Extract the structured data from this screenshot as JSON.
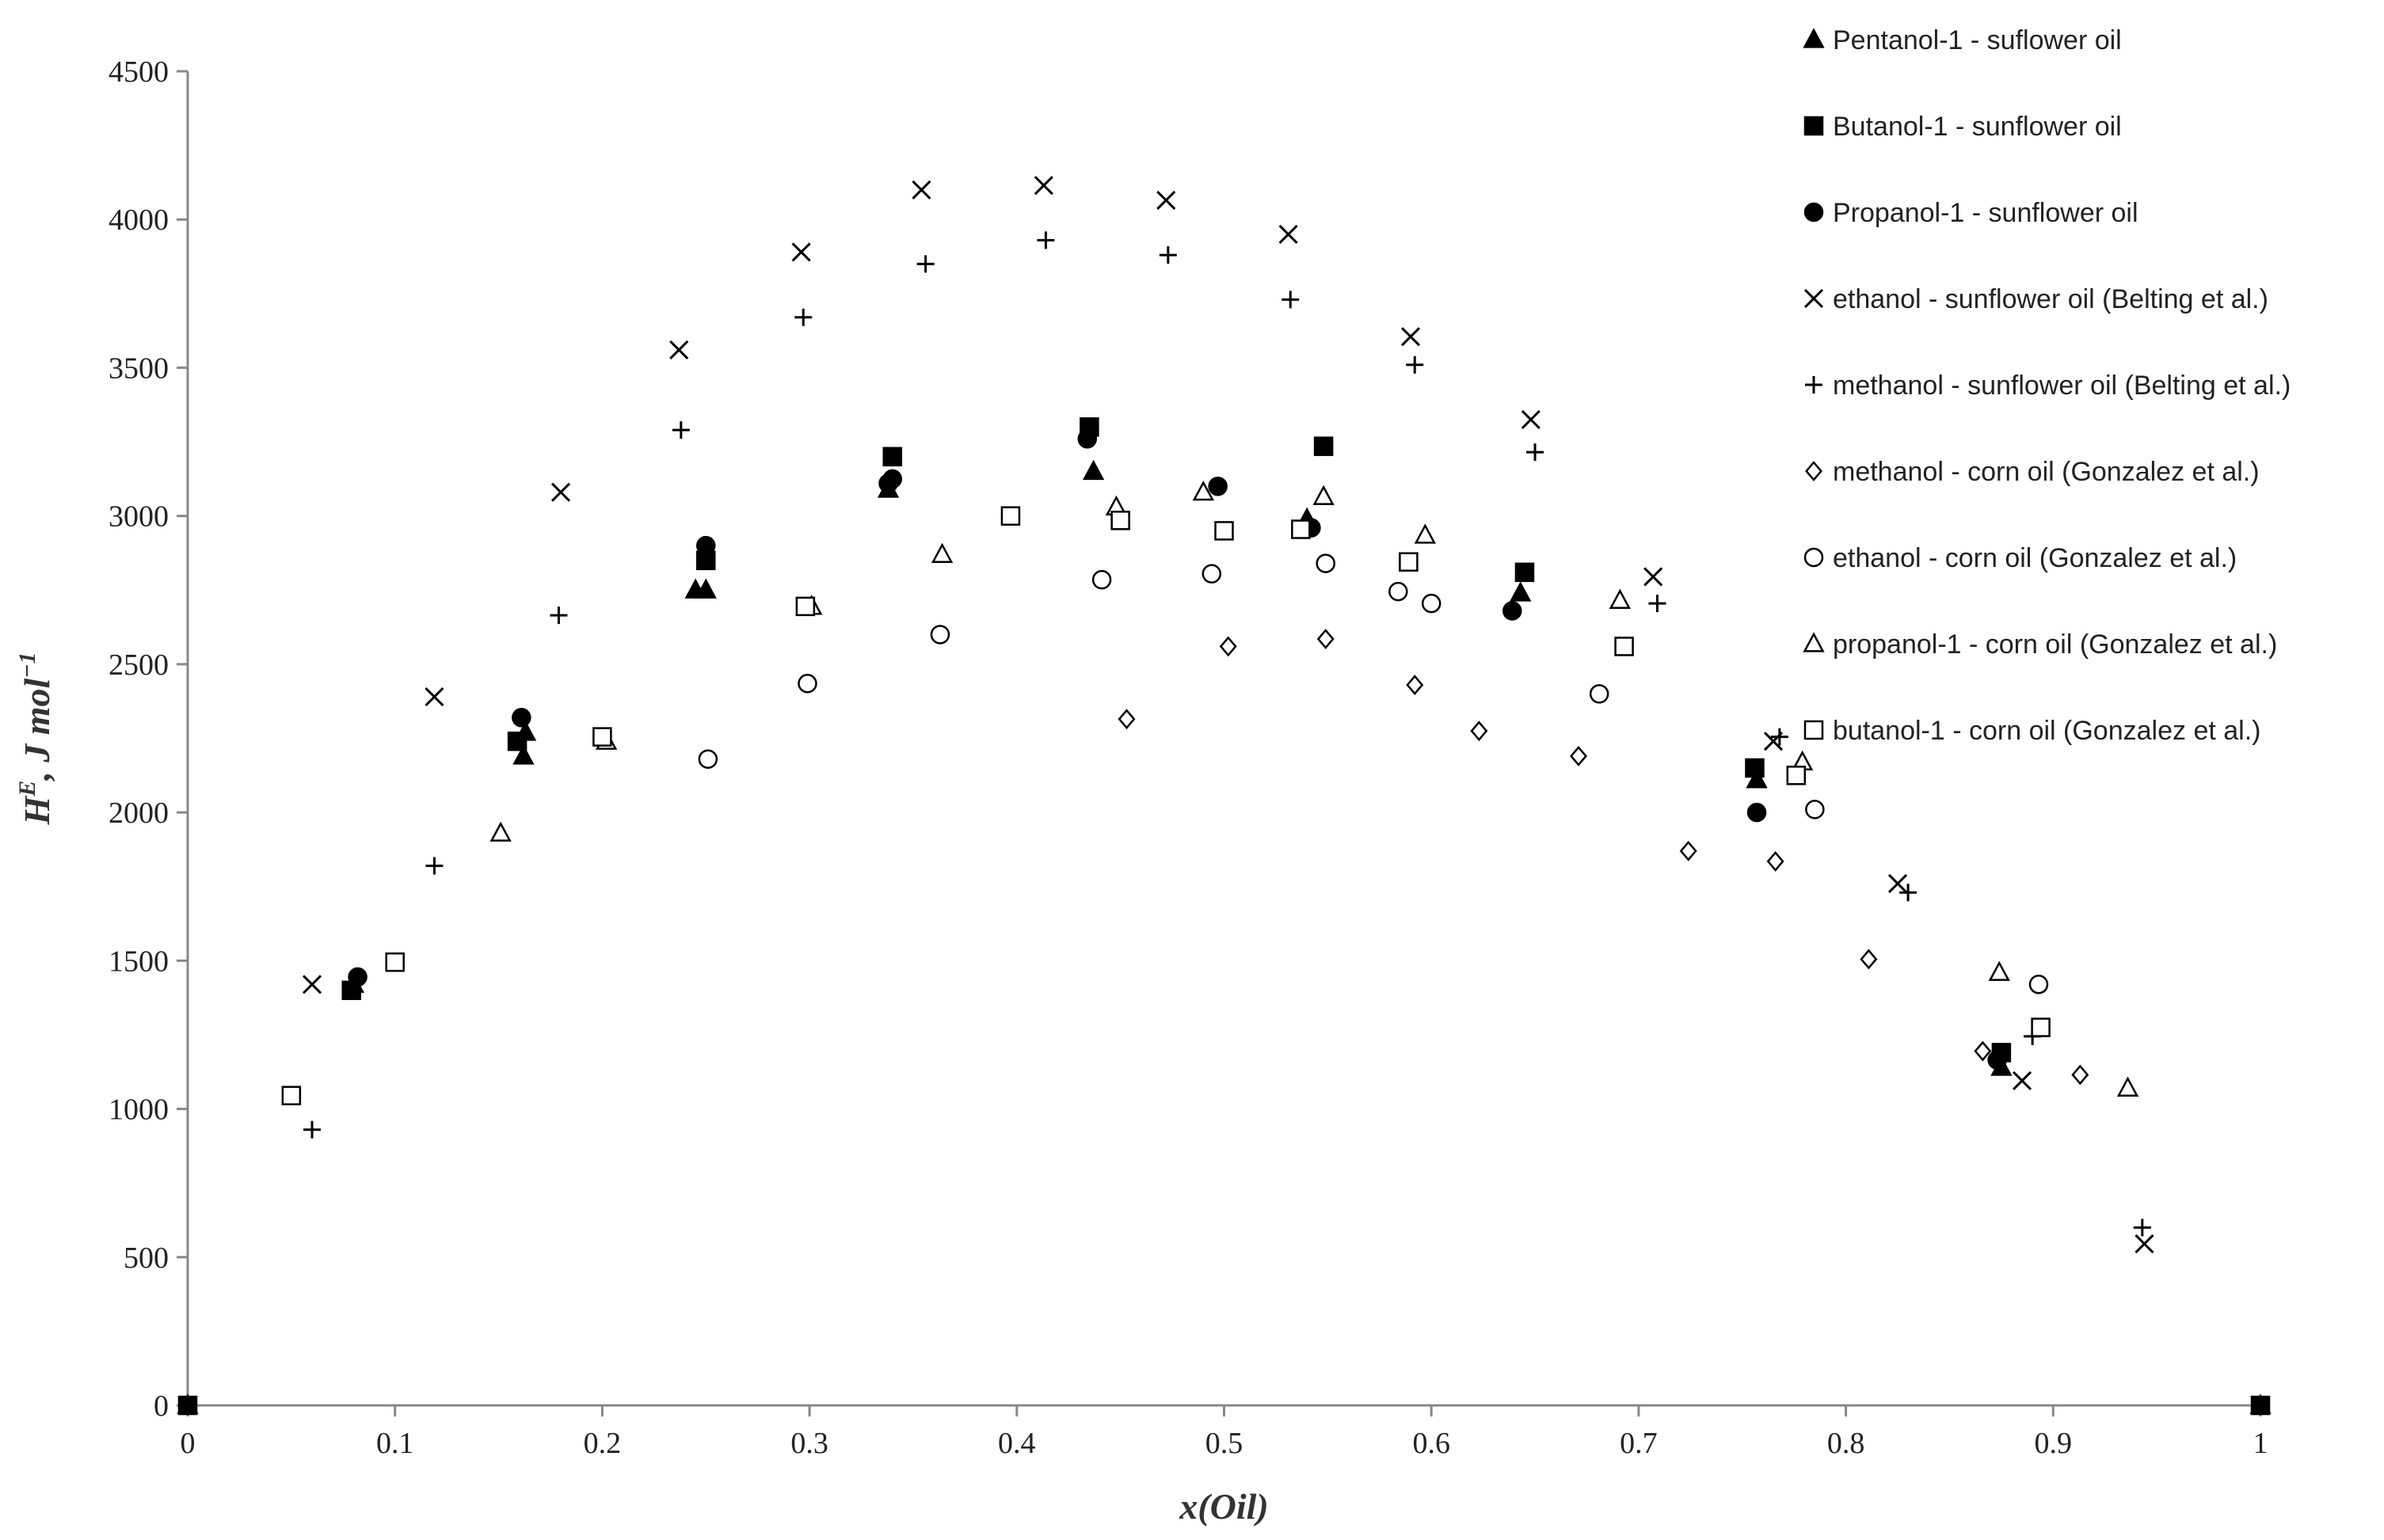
{
  "chart_data": {
    "type": "scatter",
    "title": "",
    "xlabel": "x(Oil)",
    "ylabel_main": "H",
    "ylabel_sup": "E",
    "ylabel_rest": ", J mol",
    "ylabel_exp": "−1",
    "xlim": [
      0,
      1
    ],
    "ylim": [
      0,
      4500
    ],
    "xticks": [
      0,
      0.1,
      0.2,
      0.3,
      0.4,
      0.5,
      0.6,
      0.7,
      0.8,
      0.9,
      1
    ],
    "xtick_labels": [
      "0",
      "0.1",
      "0.2",
      "0.3",
      "0.4",
      "0.5",
      "0.6",
      "0.7",
      "0.8",
      "0.9",
      "1"
    ],
    "yticks": [
      0,
      500,
      1000,
      1500,
      2000,
      2500,
      3000,
      3500,
      4000,
      4500
    ],
    "ytick_labels": [
      "0",
      "500",
      "1000",
      "1500",
      "2000",
      "2500",
      "3000",
      "3500",
      "4000",
      "4500"
    ],
    "grid": false,
    "legend_position": "top-right",
    "series": [
      {
        "name": "Pentanol-1 - suflower oil",
        "marker": "triangle-filled",
        "points": [
          [
            0,
            0
          ],
          [
            0.08,
            1420
          ],
          [
            0.162,
            2190
          ],
          [
            0.163,
            2270
          ],
          [
            0.245,
            2750
          ],
          [
            0.25,
            2750
          ],
          [
            0.338,
            3090
          ],
          [
            0.437,
            3150
          ],
          [
            0.54,
            2990
          ],
          [
            0.643,
            2740
          ],
          [
            0.757,
            2110
          ],
          [
            0.875,
            1140
          ],
          [
            1,
            0
          ]
        ]
      },
      {
        "name": "Butanol-1 - sunflower oil",
        "marker": "square-filled",
        "points": [
          [
            0,
            0
          ],
          [
            0.079,
            1400
          ],
          [
            0.159,
            2240
          ],
          [
            0.25,
            2850
          ],
          [
            0.34,
            3200
          ],
          [
            0.435,
            3300
          ],
          [
            0.548,
            3235
          ],
          [
            0.645,
            2810
          ],
          [
            0.756,
            2150
          ],
          [
            0.875,
            1190
          ],
          [
            1,
            0
          ]
        ]
      },
      {
        "name": "Propanol-1 - sunflower oil",
        "marker": "circle-filled",
        "points": [
          [
            0.082,
            1445
          ],
          [
            0.161,
            2320
          ],
          [
            0.25,
            2900
          ],
          [
            0.338,
            3110
          ],
          [
            0.34,
            3125
          ],
          [
            0.434,
            3260
          ],
          [
            0.497,
            3100
          ],
          [
            0.542,
            2960
          ],
          [
            0.639,
            2680
          ],
          [
            0.757,
            2000
          ],
          [
            0.873,
            1165
          ]
        ]
      },
      {
        "name": "ethanol - sunflower oil (Belting et al.)",
        "marker": "x",
        "points": [
          [
            0.06,
            1420
          ],
          [
            0.119,
            2390
          ],
          [
            0.18,
            3080
          ],
          [
            0.237,
            3560
          ],
          [
            0.296,
            3890
          ],
          [
            0.354,
            4100
          ],
          [
            0.413,
            4115
          ],
          [
            0.472,
            4065
          ],
          [
            0.531,
            3950
          ],
          [
            0.59,
            3605
          ],
          [
            0.648,
            3325
          ],
          [
            0.707,
            2795
          ],
          [
            0.765,
            2240
          ],
          [
            0.825,
            1760
          ],
          [
            0.885,
            1095
          ],
          [
            0.944,
            545
          ]
        ]
      },
      {
        "name": "methanol - sunflower oil (Belting et al.)",
        "marker": "plus",
        "points": [
          [
            0.06,
            930
          ],
          [
            0.119,
            1820
          ],
          [
            0.179,
            2665
          ],
          [
            0.238,
            3290
          ],
          [
            0.297,
            3670
          ],
          [
            0.356,
            3850
          ],
          [
            0.414,
            3930
          ],
          [
            0.473,
            3880
          ],
          [
            0.532,
            3730
          ],
          [
            0.592,
            3510
          ],
          [
            0.65,
            3215
          ],
          [
            0.709,
            2705
          ],
          [
            0.768,
            2255
          ],
          [
            0.83,
            1730
          ],
          [
            0.89,
            1245
          ],
          [
            0.943,
            600
          ]
        ]
      },
      {
        "name": "methanol - corn oil (Gonzalez et al.)",
        "marker": "diamond-open",
        "points": [
          [
            0.453,
            2315
          ],
          [
            0.502,
            2560
          ],
          [
            0.549,
            2585
          ],
          [
            0.592,
            2430
          ],
          [
            0.623,
            2275
          ],
          [
            0.671,
            2190
          ],
          [
            0.724,
            1870
          ],
          [
            0.766,
            1835
          ],
          [
            0.811,
            1505
          ],
          [
            0.866,
            1195
          ],
          [
            0.913,
            1115
          ]
        ]
      },
      {
        "name": "ethanol - corn oil (Gonzalez et al.)",
        "marker": "circle-open",
        "points": [
          [
            0.251,
            2180
          ],
          [
            0.299,
            2435
          ],
          [
            0.363,
            2600
          ],
          [
            0.441,
            2785
          ],
          [
            0.494,
            2805
          ],
          [
            0.549,
            2840
          ],
          [
            0.584,
            2745
          ],
          [
            0.6,
            2705
          ],
          [
            0.681,
            2400
          ],
          [
            0.785,
            2010
          ],
          [
            0.893,
            1420
          ]
        ]
      },
      {
        "name": "propanol-1 - corn oil (Gonzalez et al.)",
        "marker": "triangle-open",
        "points": [
          [
            0.151,
            1930
          ],
          [
            0.202,
            2240
          ],
          [
            0.301,
            2695
          ],
          [
            0.364,
            2870
          ],
          [
            0.448,
            3030
          ],
          [
            0.49,
            3080
          ],
          [
            0.548,
            3065
          ],
          [
            0.597,
            2935
          ],
          [
            0.691,
            2715
          ],
          [
            0.779,
            2170
          ],
          [
            0.874,
            1460
          ],
          [
            0.936,
            1070
          ]
        ]
      },
      {
        "name": "butanol-1 - corn oil (Gonzalez et al.)",
        "marker": "square-open",
        "points": [
          [
            0.05,
            1045
          ],
          [
            0.1,
            1495
          ],
          [
            0.2,
            2255
          ],
          [
            0.298,
            2695
          ],
          [
            0.397,
            3000
          ],
          [
            0.45,
            2985
          ],
          [
            0.5,
            2950
          ],
          [
            0.537,
            2955
          ],
          [
            0.589,
            2845
          ],
          [
            0.693,
            2560
          ],
          [
            0.776,
            2125
          ],
          [
            0.894,
            1275
          ]
        ]
      }
    ]
  }
}
